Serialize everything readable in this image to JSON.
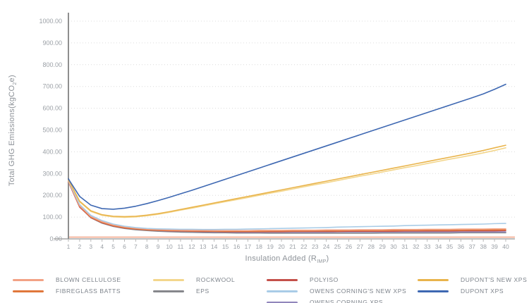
{
  "colors": {
    "grid": "#DCDCDC",
    "y_axis_line": "#8F8F8F",
    "x_axis_line": "#A6A6A6",
    "tick_mark": "#B8B8B8",
    "tick_text": "#9BA0A6",
    "axis_title_text": "#8D9298",
    "legend_text": "#7D838B",
    "baseline_highlight": "#F2A285"
  },
  "axes": {
    "y_title_prefix": "Total GHG Emissions(kgCO",
    "y_title_sub": "2",
    "y_title_suffix": "e)",
    "x_title_prefix": "Insulation Added (R",
    "x_title_sub": "IMP",
    "x_title_suffix": ")"
  },
  "chart_data": {
    "type": "line",
    "title": "",
    "xlabel": "Insulation Added (R_IMP)",
    "ylabel": "Total GHG Emissions (kgCO2e)",
    "xlim": [
      1,
      40
    ],
    "ylim": [
      0,
      1000
    ],
    "grid": "dotted horizontal gridlines every 100",
    "legend_position": "bottom",
    "x": [
      1,
      2,
      3,
      4,
      5,
      6,
      7,
      8,
      9,
      10,
      11,
      12,
      13,
      14,
      15,
      16,
      17,
      18,
      19,
      20,
      21,
      22,
      23,
      24,
      25,
      26,
      27,
      28,
      29,
      30,
      31,
      32,
      33,
      34,
      35,
      36,
      37,
      38,
      39,
      40
    ],
    "x_tick_labels": [
      "1",
      "2",
      "3",
      "4",
      "5",
      "6",
      "7",
      "8",
      "9",
      "10",
      "11",
      "12",
      "13",
      "14",
      "15",
      "16",
      "17",
      "18",
      "19",
      "20",
      "21",
      "22",
      "23",
      "24",
      "25",
      "26",
      "27",
      "28",
      "29",
      "30",
      "31",
      "32",
      "33",
      "34",
      "35",
      "36",
      "37",
      "38",
      "39",
      "40"
    ],
    "y_tick_values": [
      0,
      100,
      200,
      300,
      400,
      500,
      600,
      700,
      800,
      900,
      1000
    ],
    "y_tick_labels": [
      "0.00",
      "100.00",
      "200.00",
      "300.00",
      "400.00",
      "500.00",
      "600.00",
      "700.00",
      "800.00",
      "900.00",
      "1000.00"
    ],
    "series": [
      {
        "name": "EPS",
        "color": "#86878C",
        "legend": {
          "col": 1,
          "row": 1
        },
        "values": [
          278,
          148,
          97,
          72,
          57,
          48,
          42,
          38,
          35,
          33,
          31,
          30,
          29,
          28,
          28,
          27,
          27,
          27,
          26,
          26,
          26,
          26,
          26,
          26,
          26,
          26,
          26,
          26,
          27,
          27,
          27,
          27,
          27,
          27,
          27,
          28,
          28,
          28,
          28,
          28
        ]
      },
      {
        "name": "OWENS CORNING XPS",
        "color": "#9186BC",
        "legend": {
          "col": 2,
          "row": 2
        },
        "values": [
          266,
          149,
          99,
          75,
          60,
          51,
          45,
          41,
          38,
          36,
          35,
          34,
          33,
          32,
          32,
          31,
          31,
          31,
          31,
          31,
          31,
          31,
          31,
          31,
          32,
          32,
          32,
          32,
          32,
          32,
          32,
          32,
          32,
          32,
          32,
          32,
          32,
          32,
          32,
          32
        ]
      },
      {
        "name": "POLYISO",
        "color": "#C4504A",
        "legend": {
          "col": 2,
          "row": 0
        },
        "values": [
          262,
          146,
          98,
          74,
          59,
          50,
          45,
          41,
          39,
          37,
          36,
          35,
          34,
          34,
          33,
          33,
          33,
          33,
          33,
          33,
          34,
          34,
          34,
          34,
          34,
          35,
          35,
          35,
          35,
          35,
          36,
          36,
          36,
          36,
          36,
          37,
          37,
          37,
          37,
          38
        ]
      },
      {
        "name": "FIBREGLASS BATTS",
        "color": "#E0773B",
        "legend": {
          "col": 0,
          "row": 1
        },
        "values": [
          268,
          150,
          100,
          76,
          61,
          52,
          46,
          42,
          40,
          38,
          37,
          36,
          36,
          35,
          35,
          35,
          35,
          35,
          36,
          36,
          36,
          36,
          37,
          37,
          37,
          38,
          38,
          38,
          38,
          39,
          39,
          39,
          40,
          40,
          40,
          40,
          41,
          41,
          41,
          42
        ]
      },
      {
        "name": "BLOWN CELLULOSE",
        "color": "#F2A285",
        "legend": {
          "col": 0,
          "row": 0
        },
        "values": [
          265,
          152,
          103,
          79,
          64,
          55,
          49,
          45,
          43,
          41,
          40,
          39,
          39,
          38,
          38,
          38,
          38,
          39,
          39,
          39,
          40,
          40,
          40,
          41,
          41,
          41,
          42,
          42,
          42,
          43,
          43,
          43,
          44,
          44,
          44,
          45,
          45,
          45,
          46,
          46
        ]
      },
      {
        "name": "OWENS CORNING'S NEW XPS",
        "color": "#A9CCE7",
        "legend": {
          "col": 2,
          "row": 1
        },
        "values": [
          268,
          158,
          108,
          84,
          68,
          58,
          52,
          48,
          46,
          45,
          44,
          44,
          43,
          43,
          44,
          44,
          45,
          46,
          47,
          48,
          49,
          50,
          51,
          52,
          54,
          55,
          56,
          57,
          58,
          59,
          61,
          62,
          63,
          64,
          65,
          66,
          67,
          68,
          70,
          71
        ]
      },
      {
        "name": "ROCKWOOL",
        "color": "#F3D68C",
        "legend": {
          "col": 1,
          "row": 0
        },
        "values": [
          270,
          170,
          126,
          108,
          101,
          99,
          101,
          106,
          113,
          122,
          132,
          141,
          151,
          161,
          171,
          180,
          190,
          200,
          210,
          219,
          229,
          239,
          249,
          258,
          268,
          278,
          288,
          297,
          307,
          317,
          327,
          336,
          346,
          356,
          366,
          375,
          385,
          395,
          406,
          418
        ]
      },
      {
        "name": "DUPONT'S NEW XPS",
        "color": "#E9B44C",
        "legend": {
          "col": 3,
          "row": 0
        },
        "values": [
          272,
          173,
          129,
          111,
          104,
          102,
          104,
          109,
          116,
          125,
          135,
          145,
          155,
          165,
          175,
          185,
          195,
          205,
          215,
          225,
          235,
          245,
          255,
          265,
          275,
          285,
          295,
          305,
          315,
          325,
          335,
          345,
          355,
          365,
          375,
          385,
          395,
          406,
          418,
          430
        ]
      },
      {
        "name": "DUPONT XPS",
        "color": "#3E68B2",
        "legend": {
          "col": 3,
          "row": 1
        },
        "values": [
          275,
          195,
          155,
          139,
          136,
          141,
          150,
          162,
          176,
          191,
          207,
          223,
          240,
          257,
          274,
          291,
          308,
          325,
          342,
          359,
          376,
          393,
          410,
          427,
          444,
          461,
          478,
          495,
          512,
          529,
          546,
          563,
          580,
          597,
          614,
          631,
          648,
          666,
          687,
          710
        ]
      }
    ]
  }
}
